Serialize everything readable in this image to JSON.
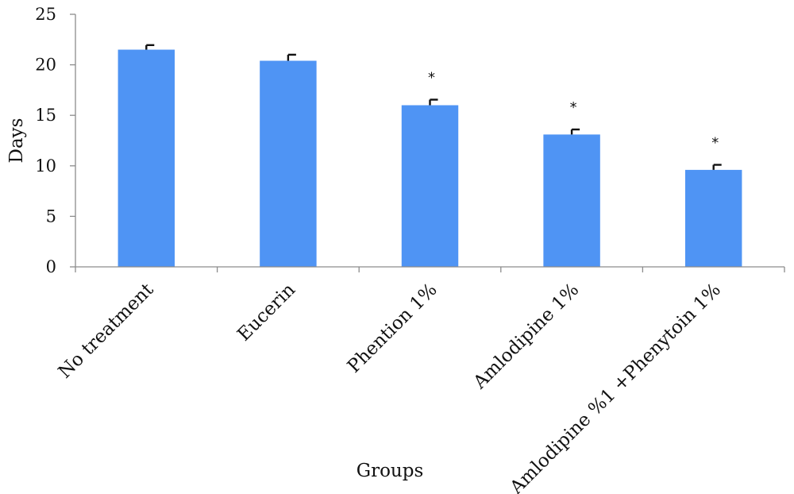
{
  "chart_data": {
    "type": "bar",
    "categories": [
      "No treatment",
      "Eucerin",
      "Phention 1%",
      "Amlodipine 1%",
      "Amlodipine %1 +Phenytoin 1%"
    ],
    "values": [
      21.5,
      20.4,
      16.0,
      13.1,
      9.6
    ],
    "errors": [
      0.45,
      0.6,
      0.55,
      0.5,
      0.5
    ],
    "significance": [
      "",
      "",
      "*",
      "*",
      "*"
    ],
    "xlabel": "Groups",
    "ylabel": "Days",
    "ylim": [
      0,
      25
    ],
    "yticks": [
      "0",
      "5",
      "10",
      "15",
      "20",
      "25"
    ],
    "bar_color": "#4f94f4",
    "grid": false,
    "legend": "none"
  }
}
